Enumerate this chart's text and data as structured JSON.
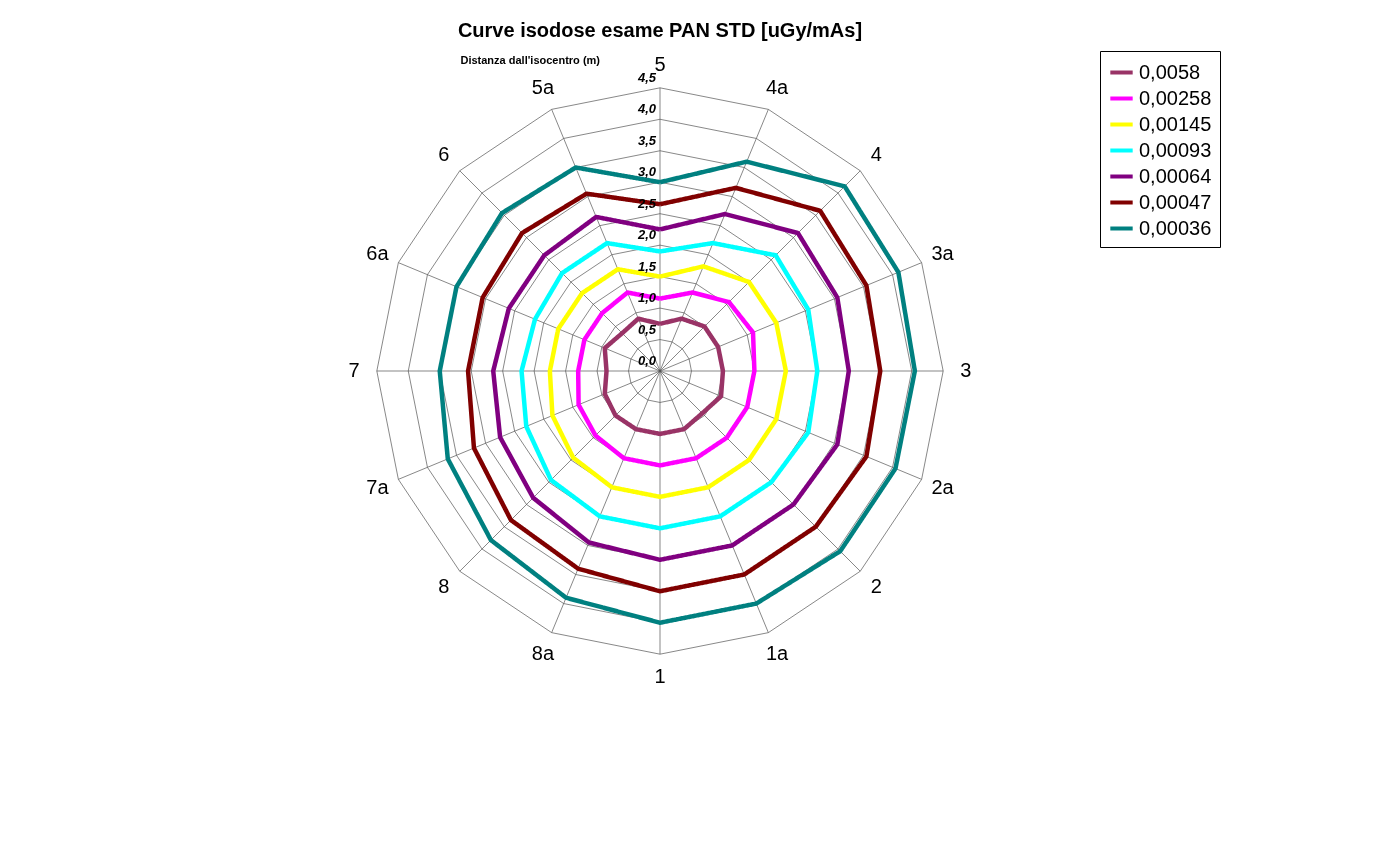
{
  "chart_data": {
    "type": "radar",
    "title": "Curve isodose esame PAN STD [uGy/mAs]",
    "ylabel": "Distanza dall'isocentro (m)",
    "categories": [
      "5",
      "4a",
      "4",
      "3a",
      "3",
      "2a",
      "2",
      "1a",
      "1",
      "8a",
      "8",
      "7a",
      "7",
      "6a",
      "6",
      "5a"
    ],
    "ylim": [
      0,
      4.5
    ],
    "yticks": [
      {
        "value": 0,
        "label": "0,0"
      },
      {
        "value": 0.5,
        "label": "0,5"
      },
      {
        "value": 1,
        "label": "1,0"
      },
      {
        "value": 1.5,
        "label": "1,5"
      },
      {
        "value": 2,
        "label": "2,0"
      },
      {
        "value": 2.5,
        "label": "2,5"
      },
      {
        "value": 3,
        "label": "3,0"
      },
      {
        "value": 3.5,
        "label": "3,5"
      },
      {
        "value": 4,
        "label": "4,0"
      },
      {
        "value": 4.5,
        "label": "4,5"
      }
    ],
    "grid": true,
    "legend": "right",
    "marker": "none",
    "line_style": "solid",
    "series": [
      {
        "name": "0,0058",
        "color": "#993366",
        "values": [
          0.75,
          0.9,
          1.0,
          1.0,
          1.0,
          1.05,
          0.95,
          1.0,
          1.0,
          1.0,
          1.0,
          0.95,
          0.85,
          0.95,
          0.85,
          0.9
        ]
      },
      {
        "name": "0,00258",
        "color": "#ff00ff",
        "values": [
          1.15,
          1.35,
          1.55,
          1.6,
          1.5,
          1.5,
          1.5,
          1.5,
          1.5,
          1.5,
          1.45,
          1.4,
          1.3,
          1.3,
          1.3,
          1.35
        ]
      },
      {
        "name": "0,00145",
        "color": "#ffff00",
        "values": [
          1.5,
          1.8,
          2.0,
          2.0,
          2.0,
          2.0,
          2.0,
          2.0,
          2.0,
          2.0,
          1.95,
          1.85,
          1.75,
          1.75,
          1.75,
          1.75
        ]
      },
      {
        "name": "0,00093",
        "color": "#00ffff",
        "values": [
          1.9,
          2.2,
          2.6,
          2.55,
          2.5,
          2.55,
          2.5,
          2.5,
          2.5,
          2.5,
          2.45,
          2.3,
          2.2,
          2.15,
          2.2,
          2.2
        ]
      },
      {
        "name": "0,00064",
        "color": "#800080",
        "values": [
          2.25,
          2.7,
          3.1,
          3.05,
          3.0,
          3.05,
          3.0,
          3.0,
          3.0,
          2.95,
          2.85,
          2.75,
          2.65,
          2.6,
          2.6,
          2.65
        ]
      },
      {
        "name": "0,00047",
        "color": "#800000",
        "values": [
          2.65,
          3.15,
          3.6,
          3.55,
          3.5,
          3.55,
          3.5,
          3.5,
          3.5,
          3.4,
          3.35,
          3.2,
          3.05,
          3.05,
          3.1,
          3.05
        ]
      },
      {
        "name": "0,00036",
        "color": "#008080",
        "values": [
          3.0,
          3.6,
          4.15,
          4.1,
          4.05,
          4.05,
          4.05,
          4.0,
          4.0,
          3.9,
          3.8,
          3.65,
          3.5,
          3.5,
          3.55,
          3.5
        ]
      }
    ]
  }
}
